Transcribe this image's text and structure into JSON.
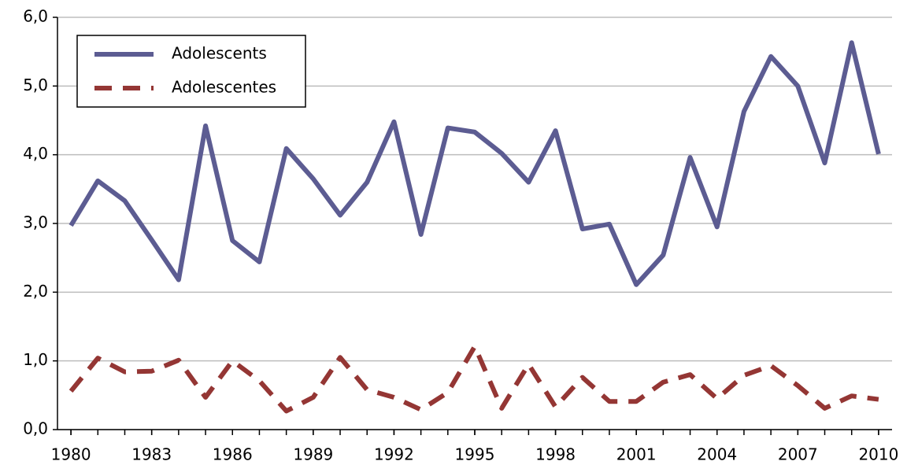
{
  "chart_data": {
    "type": "line",
    "x": [
      1980,
      1981,
      1982,
      1983,
      1984,
      1985,
      1986,
      1987,
      1988,
      1989,
      1990,
      1991,
      1992,
      1993,
      1994,
      1995,
      1996,
      1997,
      1998,
      1999,
      2000,
      2001,
      2002,
      2003,
      2004,
      2005,
      2006,
      2007,
      2008,
      2009,
      2010
    ],
    "series": [
      {
        "name": "Adolescents",
        "color": "#5c5c92",
        "line_style": "solid",
        "values": [
          2.97,
          3.62,
          3.33,
          2.76,
          2.18,
          4.42,
          2.75,
          2.44,
          4.09,
          3.65,
          3.12,
          3.6,
          4.48,
          2.84,
          4.39,
          4.33,
          4.02,
          3.6,
          4.35,
          2.92,
          2.99,
          2.11,
          2.54,
          3.96,
          2.95,
          4.63,
          5.43,
          5.0,
          3.88,
          5.63,
          4.01
        ]
      },
      {
        "name": "Adolescentes",
        "color": "#943634",
        "line_style": "dashed",
        "values": [
          0.56,
          1.04,
          0.84,
          0.85,
          1.01,
          0.47,
          1.0,
          0.71,
          0.27,
          0.47,
          1.05,
          0.58,
          0.47,
          0.29,
          0.54,
          1.21,
          0.31,
          0.95,
          0.33,
          0.76,
          0.41,
          0.41,
          0.69,
          0.8,
          0.45,
          0.79,
          0.93,
          0.64,
          0.31,
          0.49,
          0.44
        ]
      }
    ],
    "xlim": [
      1979.5,
      2010.5
    ],
    "xticks": [
      1980,
      1983,
      1986,
      1989,
      1992,
      1995,
      1998,
      2001,
      2004,
      2007,
      2010
    ],
    "ylim": [
      0,
      6
    ],
    "yticks": [
      {
        "value": 0,
        "label": "0,0"
      },
      {
        "value": 1,
        "label": "1,0"
      },
      {
        "value": 2,
        "label": "2,0"
      },
      {
        "value": 3,
        "label": "3,0"
      },
      {
        "value": 4,
        "label": "4,0"
      },
      {
        "value": 5,
        "label": "5,0"
      },
      {
        "value": 6,
        "label": "6,0"
      }
    ],
    "grid": true,
    "legend": "upper left"
  }
}
